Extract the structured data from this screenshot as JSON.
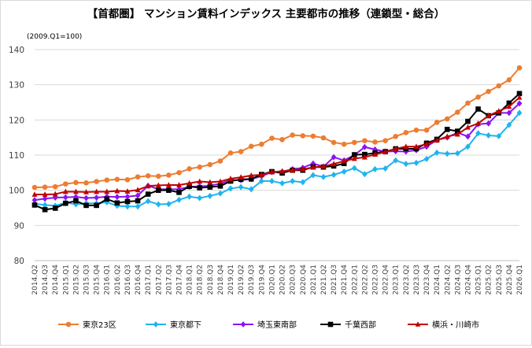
{
  "chart_data": {
    "type": "line",
    "title": "【首都圏】 マンション賃料インデックス 主要都市の推移（連鎖型・総合）",
    "base_note": "(2009.Q1=100)",
    "ylim": [
      80,
      140
    ],
    "yticks": [
      80,
      90,
      100,
      110,
      120,
      130,
      140
    ],
    "grid": true,
    "legend_position": "bottom",
    "categories": [
      "2014.Q2",
      "2014.Q3",
      "2014.Q4",
      "2015.Q1",
      "2015.Q2",
      "2015.Q3",
      "2015.Q4",
      "2016.Q1",
      "2016.Q2",
      "2016.Q3",
      "2016.Q4",
      "2017.Q1",
      "2017.Q2",
      "2017.Q3",
      "2017.Q4",
      "2018.Q1",
      "2018.Q2",
      "2018.Q3",
      "2018.Q4",
      "2019.Q1",
      "2019.Q2",
      "2019.Q3",
      "2019.Q4",
      "2020.Q1",
      "2020.Q2",
      "2020.Q3",
      "2020.Q4",
      "2021.Q1",
      "2021.Q2",
      "2021.Q3",
      "2021.Q4",
      "2022.Q1",
      "2022.Q2",
      "2022.Q3",
      "2022.Q4",
      "2023.Q1",
      "2023.Q2",
      "2023.Q3",
      "2023.Q4",
      "2024.Q1",
      "2024.Q2",
      "2024.Q3",
      "2024.Q4",
      "2025.Q1",
      "2025.Q2",
      "2025.Q3",
      "2025.Q4",
      "2026.Q1"
    ],
    "series": [
      {
        "name": "東京23区",
        "color": "#ED7D31",
        "marker": "circle",
        "values": [
          100.8,
          100.9,
          101.0,
          101.8,
          102.2,
          102.1,
          102.5,
          102.9,
          103.1,
          103.0,
          103.8,
          104.1,
          104.0,
          104.3,
          105.0,
          106.1,
          106.6,
          107.3,
          108.3,
          110.6,
          111.0,
          112.5,
          113.1,
          114.8,
          114.4,
          115.7,
          115.5,
          115.4,
          114.9,
          113.6,
          113.1,
          113.6,
          114.1,
          113.7,
          114.1,
          115.3,
          116.4,
          117.1,
          117.1,
          119.3,
          120.3,
          122.2,
          124.8,
          126.5,
          128.1,
          129.7,
          131.4,
          134.8
        ]
      },
      {
        "name": "東京都下",
        "color": "#1FB4EE",
        "marker": "diamond",
        "values": [
          96.2,
          95.8,
          95.6,
          96.5,
          96.0,
          96.3,
          96.3,
          96.6,
          95.6,
          95.4,
          95.4,
          96.9,
          96.0,
          96.1,
          97.3,
          98.2,
          97.8,
          98.4,
          99.1,
          100.5,
          100.9,
          100.3,
          102.6,
          102.6,
          102.0,
          102.6,
          102.3,
          104.3,
          103.8,
          104.4,
          105.3,
          106.3,
          104.6,
          106.0,
          106.2,
          108.5,
          107.5,
          107.8,
          108.9,
          110.7,
          110.4,
          110.5,
          112.4,
          116.2,
          115.6,
          115.4,
          118.6,
          122.0
        ]
      },
      {
        "name": "埼玉東南部",
        "color": "#8B13F6",
        "marker": "diamond",
        "values": [
          97.2,
          97.6,
          97.9,
          98.0,
          98.1,
          97.8,
          97.9,
          98.2,
          98.1,
          98.2,
          98.5,
          101.3,
          100.3,
          100.3,
          100.3,
          101.0,
          101.1,
          101.3,
          101.9,
          102.9,
          102.9,
          103.2,
          104.0,
          105.2,
          105.3,
          106.0,
          106.4,
          107.6,
          106.7,
          109.4,
          108.5,
          110.0,
          112.3,
          111.6,
          111.0,
          111.1,
          111.0,
          111.4,
          112.4,
          114.3,
          115.0,
          116.4,
          115.3,
          118.8,
          119.0,
          122.0,
          122.0,
          124.7
        ]
      },
      {
        "name": "千葉西部",
        "color": "#000000",
        "marker": "square",
        "values": [
          95.8,
          94.5,
          94.9,
          96.3,
          97.0,
          95.7,
          95.7,
          97.5,
          96.4,
          96.8,
          97.0,
          98.9,
          100.0,
          100.0,
          99.4,
          101.1,
          100.7,
          100.9,
          101.2,
          102.6,
          103.1,
          103.2,
          104.5,
          105.3,
          104.9,
          105.7,
          105.7,
          106.6,
          106.6,
          106.9,
          107.6,
          110.1,
          110.2,
          110.6,
          111.0,
          111.8,
          111.8,
          111.8,
          113.4,
          114.5,
          117.3,
          116.8,
          119.6,
          123.1,
          121.2,
          122.0,
          124.8,
          127.5
        ]
      },
      {
        "name": "横浜・川崎市",
        "color": "#C00000",
        "marker": "triangle",
        "values": [
          98.8,
          98.8,
          98.9,
          99.6,
          99.6,
          99.5,
          99.6,
          99.6,
          99.8,
          99.7,
          100.1,
          101.2,
          101.4,
          101.5,
          101.5,
          102.0,
          102.5,
          102.3,
          102.5,
          103.3,
          103.7,
          104.2,
          104.4,
          105.2,
          105.4,
          105.7,
          106.0,
          106.5,
          106.8,
          107.5,
          108.3,
          109.0,
          109.4,
          110.2,
          110.9,
          111.8,
          112.4,
          112.4,
          113.1,
          114.2,
          115.3,
          115.9,
          117.9,
          119.0,
          121.2,
          122.5,
          123.8,
          126.4
        ]
      }
    ]
  }
}
